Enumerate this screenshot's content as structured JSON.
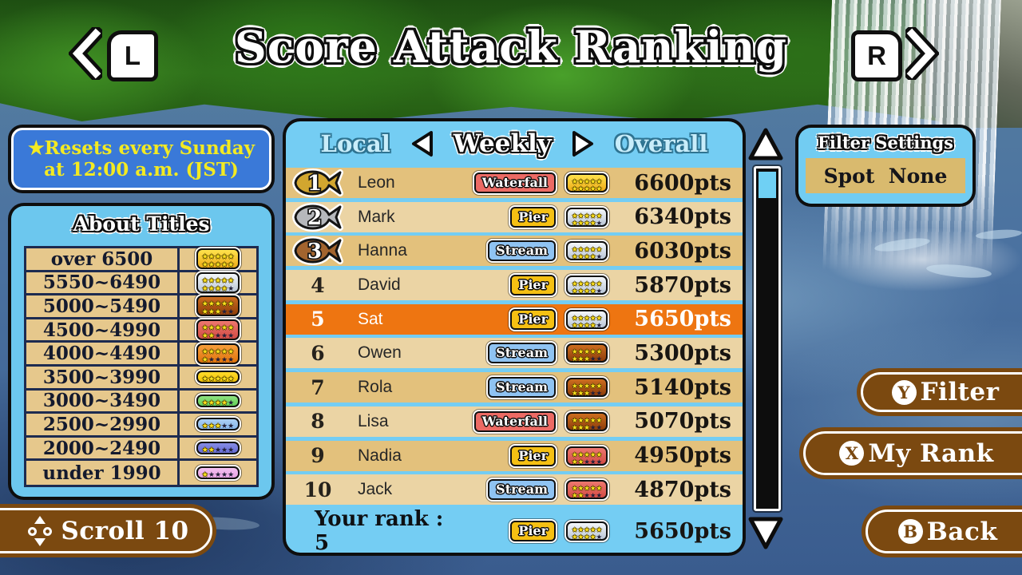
{
  "header": {
    "title": "Score Attack Ranking",
    "left_bumper": "L",
    "right_bumper": "R"
  },
  "notice": {
    "line1": "★Resets every Sunday",
    "line2": "at 12:00 a.m. (JST)"
  },
  "about_titles": {
    "title": "About Titles",
    "rows": [
      {
        "range": "over 6500",
        "badge": "gold10"
      },
      {
        "range": "5550~6490",
        "badge": "silver10"
      },
      {
        "range": "5000~5490",
        "badge": "bronze10"
      },
      {
        "range": "4500~4990",
        "badge": "red10"
      },
      {
        "range": "4000~4490",
        "badge": "orange10"
      },
      {
        "range": "3500~3990",
        "badge": "yellow5"
      },
      {
        "range": "3000~3490",
        "badge": "green5"
      },
      {
        "range": "2500~2990",
        "badge": "lightblue5"
      },
      {
        "range": "2000~2490",
        "badge": "blue5"
      },
      {
        "range": "under 1990",
        "badge": "pink5"
      }
    ]
  },
  "badges": {
    "gold10": {
      "c1": "#ffe34d",
      "c2": "#eeab17",
      "pattern": "YYYYY/YYYYY"
    },
    "silver10": {
      "c1": "#f4f7fa",
      "c2": "#bac6d6",
      "pattern": "YYYYY/YYYYD"
    },
    "bronze10": {
      "c1": "#cd6d20",
      "c2": "#8d3d0a",
      "pattern": "YYYYY/YYYDD"
    },
    "red10": {
      "c1": "#ee776e",
      "c2": "#d24b45",
      "pattern": "YYYYY/YYDDD"
    },
    "orange10": {
      "c1": "#f89f3b",
      "c2": "#de730d",
      "pattern": "YYYYY/YDDDD"
    },
    "yellow5": {
      "c1": "#ffda2a",
      "c2": "#f3c408",
      "pattern": "YYYYY"
    },
    "green5": {
      "c1": "#8fe180",
      "c2": "#63cf58",
      "pattern": "YYYYD"
    },
    "lightblue5": {
      "c1": "#abd0f4",
      "c2": "#88b8ec",
      "pattern": "YYYDD"
    },
    "blue5": {
      "c1": "#868ce5",
      "c2": "#666cd4",
      "pattern": "YYDDD"
    },
    "pink5": {
      "c1": "#f4c0f1",
      "c2": "#e7a3e3",
      "pattern": "YDDDD"
    }
  },
  "spots": {
    "Waterfall": "#ec6a64",
    "Pier": "#f5c013",
    "Stream": "#8fc3f2"
  },
  "medals": {
    "gold": "#d2a62f",
    "silver": "#b6b8bc",
    "bronze": "#a2642e"
  },
  "ranking": {
    "tabs": {
      "left": "Local",
      "center": "Weekly",
      "right": "Overall"
    },
    "rows": [
      {
        "rank": "1",
        "medal": "gold",
        "name": "Leon",
        "spot": "Waterfall",
        "badge": "gold10",
        "points": "6600pts",
        "highlight": false
      },
      {
        "rank": "2",
        "medal": "silver",
        "name": "Mark",
        "spot": "Pier",
        "badge": "silver10",
        "points": "6340pts",
        "highlight": false
      },
      {
        "rank": "3",
        "medal": "bronze",
        "name": "Hanna",
        "spot": "Stream",
        "badge": "silver10",
        "points": "6030pts",
        "highlight": false
      },
      {
        "rank": "4",
        "name": "David",
        "spot": "Pier",
        "badge": "silver10",
        "points": "5870pts",
        "highlight": false
      },
      {
        "rank": "5",
        "name": "Sat",
        "spot": "Pier",
        "badge": "silver10",
        "points": "5650pts",
        "highlight": true
      },
      {
        "rank": "6",
        "name": "Owen",
        "spot": "Stream",
        "badge": "bronze10",
        "points": "5300pts",
        "highlight": false
      },
      {
        "rank": "7",
        "name": "Rola",
        "spot": "Stream",
        "badge": "bronze10",
        "points": "5140pts",
        "highlight": false
      },
      {
        "rank": "8",
        "name": "Lisa",
        "spot": "Waterfall",
        "badge": "bronze10",
        "points": "5070pts",
        "highlight": false
      },
      {
        "rank": "9",
        "name": "Nadia",
        "spot": "Pier",
        "badge": "red10",
        "points": "4950pts",
        "highlight": false
      },
      {
        "rank": "10",
        "name": "Jack",
        "spot": "Stream",
        "badge": "red10",
        "points": "4870pts",
        "highlight": false
      }
    ],
    "your_rank": {
      "label": "Your rank : 5",
      "spot": "Pier",
      "badge": "silver10",
      "points": "5650pts"
    }
  },
  "filter_settings": {
    "title": "Filter Settings",
    "value": "Spot  None"
  },
  "buttons": {
    "filter": {
      "key": "Y",
      "label": "Filter"
    },
    "my_rank": {
      "key": "X",
      "label": "My Rank"
    },
    "back": {
      "key": "B",
      "label": "Back"
    },
    "scroll": {
      "label": "Scroll 10"
    }
  },
  "colors": {
    "highlight_row": "#ee7511",
    "row_dark": "#e3c17c",
    "row_light": "#ebd4a4",
    "panel_blue": "#74cdf3",
    "button_brown": "#7b4910",
    "notice_blue": "#3a79d8"
  }
}
